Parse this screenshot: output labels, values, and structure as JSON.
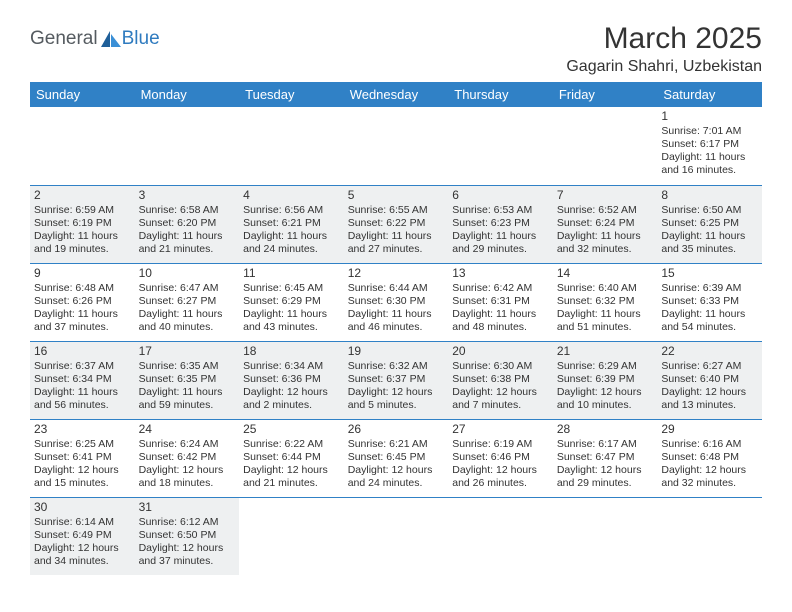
{
  "brand": {
    "part1": "General",
    "part2": "Blue",
    "icon_color": "#2f7bbf",
    "text1_color": "#555b60"
  },
  "title": "March 2025",
  "location": "Gagarin Shahri, Uzbekistan",
  "header_bg": "#3081c6",
  "header_fg": "#ffffff",
  "row_border": "#3081c6",
  "shade_bg": "#eef0f1",
  "day_headers": [
    "Sunday",
    "Monday",
    "Tuesday",
    "Wednesday",
    "Thursday",
    "Friday",
    "Saturday"
  ],
  "weeks": [
    [
      {
        "blank": true
      },
      {
        "blank": true
      },
      {
        "blank": true
      },
      {
        "blank": true
      },
      {
        "blank": true
      },
      {
        "blank": true
      },
      {
        "n": "1",
        "sr": "Sunrise: 7:01 AM",
        "ss": "Sunset: 6:17 PM",
        "d1": "Daylight: 11 hours",
        "d2": "and 16 minutes."
      }
    ],
    [
      {
        "n": "2",
        "shade": true,
        "sr": "Sunrise: 6:59 AM",
        "ss": "Sunset: 6:19 PM",
        "d1": "Daylight: 11 hours",
        "d2": "and 19 minutes."
      },
      {
        "n": "3",
        "shade": true,
        "sr": "Sunrise: 6:58 AM",
        "ss": "Sunset: 6:20 PM",
        "d1": "Daylight: 11 hours",
        "d2": "and 21 minutes."
      },
      {
        "n": "4",
        "shade": true,
        "sr": "Sunrise: 6:56 AM",
        "ss": "Sunset: 6:21 PM",
        "d1": "Daylight: 11 hours",
        "d2": "and 24 minutes."
      },
      {
        "n": "5",
        "shade": true,
        "sr": "Sunrise: 6:55 AM",
        "ss": "Sunset: 6:22 PM",
        "d1": "Daylight: 11 hours",
        "d2": "and 27 minutes."
      },
      {
        "n": "6",
        "shade": true,
        "sr": "Sunrise: 6:53 AM",
        "ss": "Sunset: 6:23 PM",
        "d1": "Daylight: 11 hours",
        "d2": "and 29 minutes."
      },
      {
        "n": "7",
        "shade": true,
        "sr": "Sunrise: 6:52 AM",
        "ss": "Sunset: 6:24 PM",
        "d1": "Daylight: 11 hours",
        "d2": "and 32 minutes."
      },
      {
        "n": "8",
        "shade": true,
        "sr": "Sunrise: 6:50 AM",
        "ss": "Sunset: 6:25 PM",
        "d1": "Daylight: 11 hours",
        "d2": "and 35 minutes."
      }
    ],
    [
      {
        "n": "9",
        "sr": "Sunrise: 6:48 AM",
        "ss": "Sunset: 6:26 PM",
        "d1": "Daylight: 11 hours",
        "d2": "and 37 minutes."
      },
      {
        "n": "10",
        "sr": "Sunrise: 6:47 AM",
        "ss": "Sunset: 6:27 PM",
        "d1": "Daylight: 11 hours",
        "d2": "and 40 minutes."
      },
      {
        "n": "11",
        "sr": "Sunrise: 6:45 AM",
        "ss": "Sunset: 6:29 PM",
        "d1": "Daylight: 11 hours",
        "d2": "and 43 minutes."
      },
      {
        "n": "12",
        "sr": "Sunrise: 6:44 AM",
        "ss": "Sunset: 6:30 PM",
        "d1": "Daylight: 11 hours",
        "d2": "and 46 minutes."
      },
      {
        "n": "13",
        "sr": "Sunrise: 6:42 AM",
        "ss": "Sunset: 6:31 PM",
        "d1": "Daylight: 11 hours",
        "d2": "and 48 minutes."
      },
      {
        "n": "14",
        "sr": "Sunrise: 6:40 AM",
        "ss": "Sunset: 6:32 PM",
        "d1": "Daylight: 11 hours",
        "d2": "and 51 minutes."
      },
      {
        "n": "15",
        "sr": "Sunrise: 6:39 AM",
        "ss": "Sunset: 6:33 PM",
        "d1": "Daylight: 11 hours",
        "d2": "and 54 minutes."
      }
    ],
    [
      {
        "n": "16",
        "shade": true,
        "sr": "Sunrise: 6:37 AM",
        "ss": "Sunset: 6:34 PM",
        "d1": "Daylight: 11 hours",
        "d2": "and 56 minutes."
      },
      {
        "n": "17",
        "shade": true,
        "sr": "Sunrise: 6:35 AM",
        "ss": "Sunset: 6:35 PM",
        "d1": "Daylight: 11 hours",
        "d2": "and 59 minutes."
      },
      {
        "n": "18",
        "shade": true,
        "sr": "Sunrise: 6:34 AM",
        "ss": "Sunset: 6:36 PM",
        "d1": "Daylight: 12 hours",
        "d2": "and 2 minutes."
      },
      {
        "n": "19",
        "shade": true,
        "sr": "Sunrise: 6:32 AM",
        "ss": "Sunset: 6:37 PM",
        "d1": "Daylight: 12 hours",
        "d2": "and 5 minutes."
      },
      {
        "n": "20",
        "shade": true,
        "sr": "Sunrise: 6:30 AM",
        "ss": "Sunset: 6:38 PM",
        "d1": "Daylight: 12 hours",
        "d2": "and 7 minutes."
      },
      {
        "n": "21",
        "shade": true,
        "sr": "Sunrise: 6:29 AM",
        "ss": "Sunset: 6:39 PM",
        "d1": "Daylight: 12 hours",
        "d2": "and 10 minutes."
      },
      {
        "n": "22",
        "shade": true,
        "sr": "Sunrise: 6:27 AM",
        "ss": "Sunset: 6:40 PM",
        "d1": "Daylight: 12 hours",
        "d2": "and 13 minutes."
      }
    ],
    [
      {
        "n": "23",
        "sr": "Sunrise: 6:25 AM",
        "ss": "Sunset: 6:41 PM",
        "d1": "Daylight: 12 hours",
        "d2": "and 15 minutes."
      },
      {
        "n": "24",
        "sr": "Sunrise: 6:24 AM",
        "ss": "Sunset: 6:42 PM",
        "d1": "Daylight: 12 hours",
        "d2": "and 18 minutes."
      },
      {
        "n": "25",
        "sr": "Sunrise: 6:22 AM",
        "ss": "Sunset: 6:44 PM",
        "d1": "Daylight: 12 hours",
        "d2": "and 21 minutes."
      },
      {
        "n": "26",
        "sr": "Sunrise: 6:21 AM",
        "ss": "Sunset: 6:45 PM",
        "d1": "Daylight: 12 hours",
        "d2": "and 24 minutes."
      },
      {
        "n": "27",
        "sr": "Sunrise: 6:19 AM",
        "ss": "Sunset: 6:46 PM",
        "d1": "Daylight: 12 hours",
        "d2": "and 26 minutes."
      },
      {
        "n": "28",
        "sr": "Sunrise: 6:17 AM",
        "ss": "Sunset: 6:47 PM",
        "d1": "Daylight: 12 hours",
        "d2": "and 29 minutes."
      },
      {
        "n": "29",
        "sr": "Sunrise: 6:16 AM",
        "ss": "Sunset: 6:48 PM",
        "d1": "Daylight: 12 hours",
        "d2": "and 32 minutes."
      }
    ],
    [
      {
        "n": "30",
        "shade": true,
        "sr": "Sunrise: 6:14 AM",
        "ss": "Sunset: 6:49 PM",
        "d1": "Daylight: 12 hours",
        "d2": "and 34 minutes."
      },
      {
        "n": "31",
        "shade": true,
        "sr": "Sunrise: 6:12 AM",
        "ss": "Sunset: 6:50 PM",
        "d1": "Daylight: 12 hours",
        "d2": "and 37 minutes."
      },
      {
        "blank": true
      },
      {
        "blank": true
      },
      {
        "blank": true
      },
      {
        "blank": true
      },
      {
        "blank": true
      }
    ]
  ]
}
